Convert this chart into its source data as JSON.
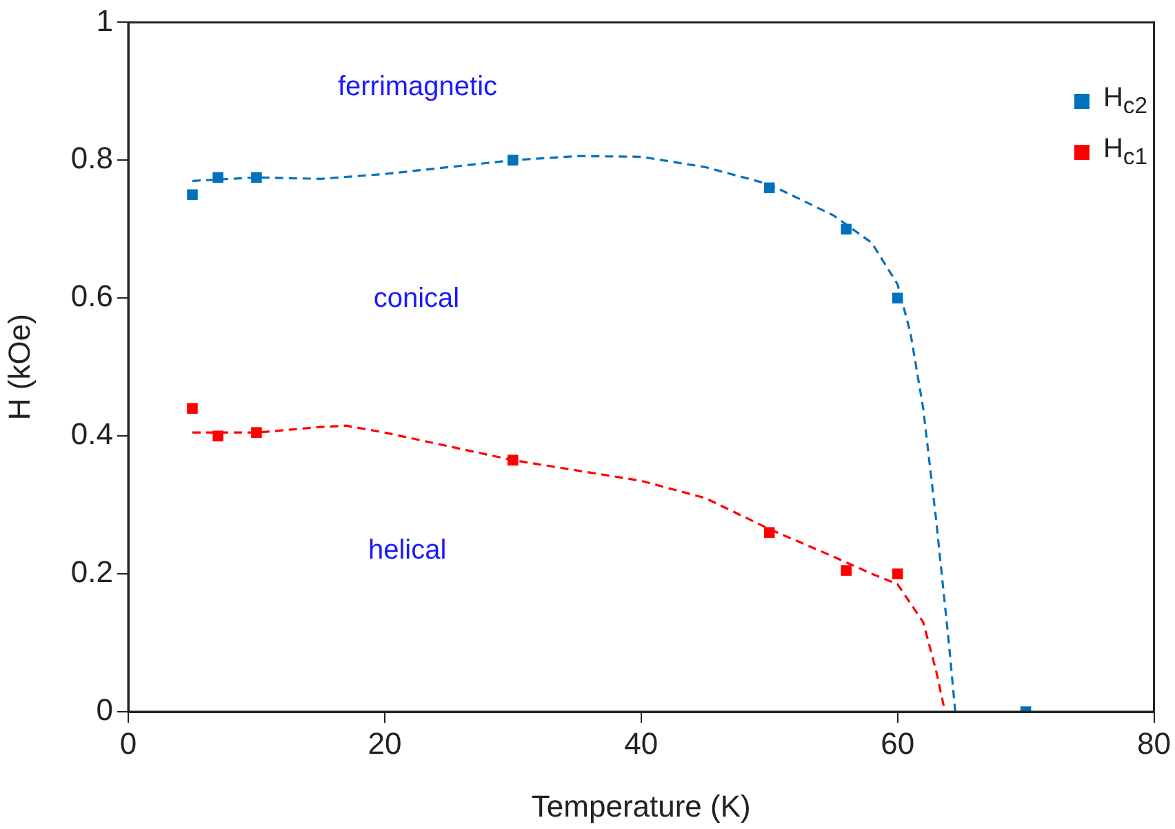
{
  "chart_data": {
    "type": "scatter",
    "xlabel": "Temperature (K)",
    "ylabel": "H (kOe)",
    "xlim": [
      0,
      80
    ],
    "xticks": [
      0,
      20,
      40,
      60,
      80
    ],
    "ylim": [
      0,
      1
    ],
    "yticks": [
      0,
      0.2,
      0.4,
      0.6,
      0.8,
      1
    ],
    "grid": false,
    "legend": "top right",
    "marker": "square",
    "series": [
      {
        "name": "H$_{c2}$",
        "color": "#0072bd",
        "x": [
          5,
          7,
          10,
          30,
          50,
          56,
          60,
          70
        ],
        "values": [
          0.75,
          0.775,
          0.775,
          0.8,
          0.76,
          0.7,
          0.6,
          0
        ]
      },
      {
        "name": "H$_{c1}$",
        "color": "#ff0000",
        "x": [
          5,
          7,
          10,
          30,
          50,
          56,
          60
        ],
        "values": [
          0.44,
          0.4,
          0.405,
          0.365,
          0.26,
          0.205,
          0.2
        ]
      },
      {
        "type": "line",
        "color": "#0072bd",
        "line_style": "dashed",
        "marker": "none",
        "x": [
          5,
          10,
          15,
          20,
          25,
          30,
          35,
          40,
          45,
          50,
          55,
          58,
          60,
          61,
          62,
          63,
          64,
          64.5
        ],
        "values": [
          0.77,
          0.775,
          0.773,
          0.78,
          0.79,
          0.8,
          0.806,
          0.805,
          0.79,
          0.765,
          0.72,
          0.68,
          0.62,
          0.55,
          0.44,
          0.28,
          0.1,
          0
        ]
      },
      {
        "type": "line",
        "color": "#ff0000",
        "line_style": "dashed",
        "marker": "none",
        "x": [
          5,
          10,
          15,
          17,
          20,
          25,
          30,
          35,
          40,
          45,
          50,
          55,
          58,
          60,
          62,
          63,
          63.7
        ],
        "values": [
          0.405,
          0.405,
          0.413,
          0.415,
          0.405,
          0.385,
          0.365,
          0.35,
          0.335,
          0.31,
          0.265,
          0.225,
          0.2,
          0.185,
          0.13,
          0.06,
          0
        ]
      }
    ],
    "annotations": [
      "ferrimagnetic",
      "conical",
      "helical"
    ]
  }
}
